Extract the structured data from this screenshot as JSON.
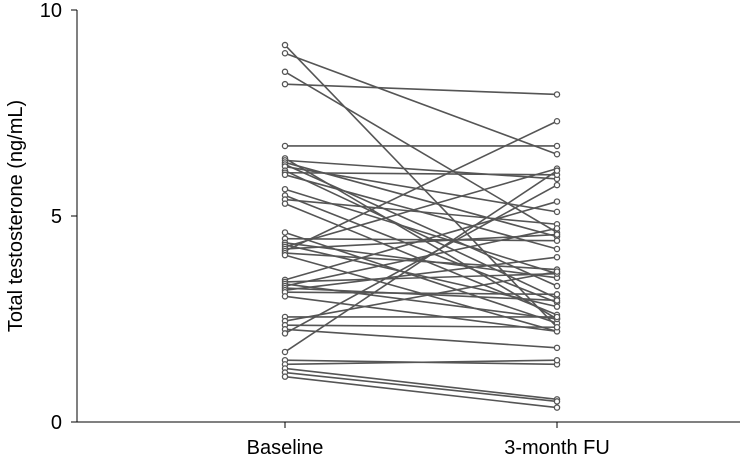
{
  "chart_data": {
    "type": "line",
    "title": "",
    "xlabel": "",
    "ylabel": "Total testosterone (ng/mL)",
    "categories": [
      "Baseline",
      "3-month FU"
    ],
    "ylim": [
      0,
      10
    ],
    "yticks": [
      0,
      5,
      10
    ],
    "grid": false,
    "pairs": [
      [
        9.15,
        2.3
      ],
      [
        8.95,
        6.5
      ],
      [
        8.5,
        4.6
      ],
      [
        8.2,
        7.95
      ],
      [
        6.7,
        6.7
      ],
      [
        6.4,
        2.5
      ],
      [
        6.35,
        5.9
      ],
      [
        6.3,
        4.5
      ],
      [
        6.25,
        3.3
      ],
      [
        6.2,
        5.1
      ],
      [
        6.1,
        3.0
      ],
      [
        6.05,
        6.0
      ],
      [
        6.0,
        4.2
      ],
      [
        5.65,
        3.6
      ],
      [
        5.5,
        2.9
      ],
      [
        5.4,
        4.8
      ],
      [
        5.3,
        2.6
      ],
      [
        4.6,
        2.4
      ],
      [
        4.45,
        4.4
      ],
      [
        4.35,
        3.5
      ],
      [
        4.3,
        2.8
      ],
      [
        4.25,
        6.15
      ],
      [
        4.2,
        4.55
      ],
      [
        4.15,
        7.3
      ],
      [
        4.1,
        3.7
      ],
      [
        4.05,
        2.2
      ],
      [
        3.45,
        5.35
      ],
      [
        3.4,
        3.6
      ],
      [
        3.35,
        2.5
      ],
      [
        3.3,
        4.7
      ],
      [
        3.25,
        2.95
      ],
      [
        3.2,
        4.0
      ],
      [
        3.15,
        3.1
      ],
      [
        3.05,
        2.2
      ],
      [
        2.55,
        2.55
      ],
      [
        2.45,
        3.65
      ],
      [
        2.35,
        2.3
      ],
      [
        2.25,
        1.8
      ],
      [
        2.15,
        5.75
      ],
      [
        1.7,
        6.1
      ],
      [
        1.5,
        1.4
      ],
      [
        1.4,
        1.5
      ],
      [
        1.3,
        0.55
      ],
      [
        1.2,
        0.5
      ],
      [
        1.1,
        0.35
      ]
    ]
  }
}
